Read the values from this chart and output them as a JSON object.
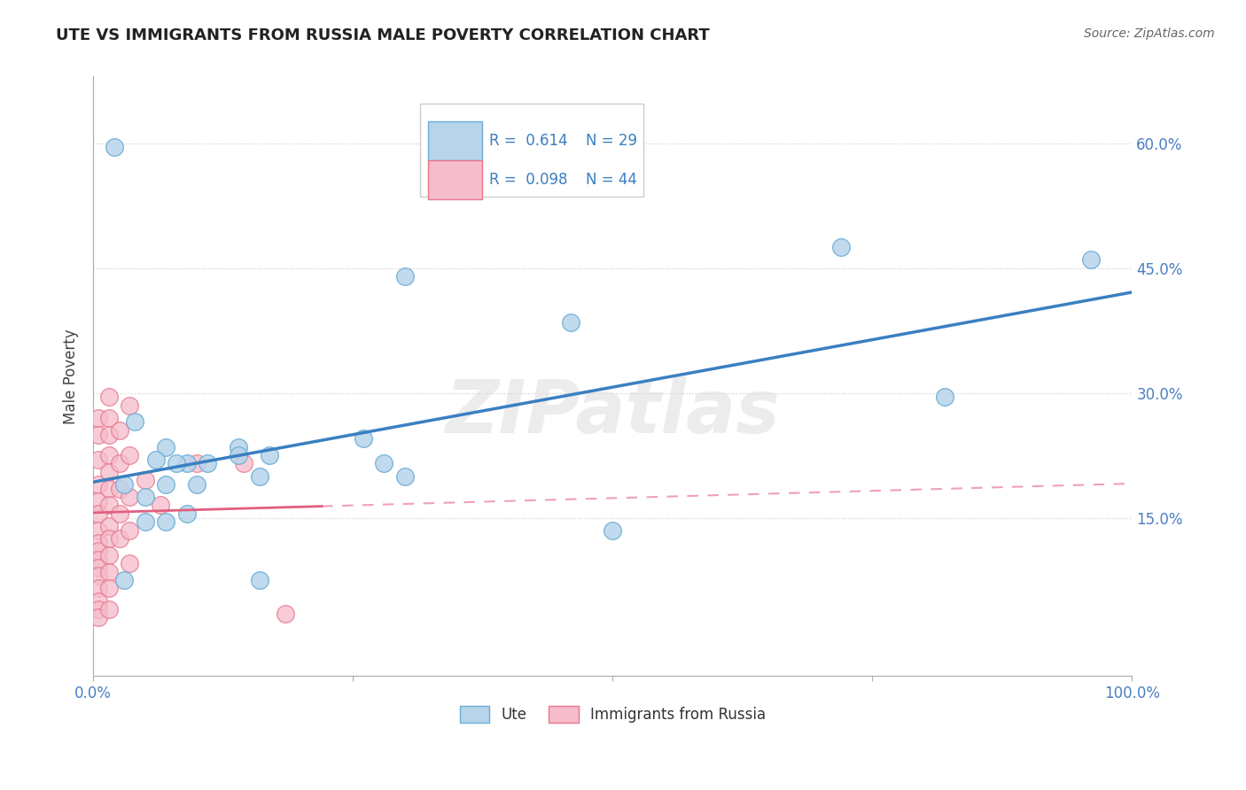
{
  "title": "UTE VS IMMIGRANTS FROM RUSSIA MALE POVERTY CORRELATION CHART",
  "source": "Source: ZipAtlas.com",
  "ylabel_label": "Male Poverty",
  "y_tick_values": [
    0.15,
    0.3,
    0.45,
    0.6
  ],
  "xlim": [
    0.0,
    1.0
  ],
  "ylim": [
    -0.04,
    0.68
  ],
  "legend_r_ute": "R =  0.614",
  "legend_n_ute": "N = 29",
  "legend_r_russia": "R =  0.098",
  "legend_n_russia": "N = 44",
  "ute_color": "#b8d4ea",
  "russia_color": "#f5bccb",
  "ute_edge_color": "#6aaed6",
  "russia_edge_color": "#e8758a",
  "ute_line_color": "#3a7fc1",
  "russia_solid_color": "#e06080",
  "russia_dash_color": "#f0a0b8",
  "watermark_text": "ZIPatlas",
  "ute_points": [
    [
      0.02,
      0.595
    ],
    [
      0.46,
      0.385
    ],
    [
      0.3,
      0.44
    ],
    [
      0.72,
      0.475
    ],
    [
      0.04,
      0.265
    ],
    [
      0.07,
      0.235
    ],
    [
      0.09,
      0.215
    ],
    [
      0.11,
      0.215
    ],
    [
      0.14,
      0.235
    ],
    [
      0.17,
      0.225
    ],
    [
      0.06,
      0.22
    ],
    [
      0.08,
      0.215
    ],
    [
      0.1,
      0.19
    ],
    [
      0.03,
      0.19
    ],
    [
      0.05,
      0.175
    ],
    [
      0.07,
      0.19
    ],
    [
      0.14,
      0.225
    ],
    [
      0.16,
      0.2
    ],
    [
      0.26,
      0.245
    ],
    [
      0.28,
      0.215
    ],
    [
      0.3,
      0.2
    ],
    [
      0.05,
      0.145
    ],
    [
      0.07,
      0.145
    ],
    [
      0.09,
      0.155
    ],
    [
      0.5,
      0.135
    ],
    [
      0.82,
      0.295
    ],
    [
      0.96,
      0.46
    ],
    [
      0.03,
      0.075
    ],
    [
      0.16,
      0.075
    ]
  ],
  "russia_points": [
    [
      0.005,
      0.27
    ],
    [
      0.005,
      0.25
    ],
    [
      0.005,
      0.22
    ],
    [
      0.005,
      0.19
    ],
    [
      0.005,
      0.17
    ],
    [
      0.005,
      0.155
    ],
    [
      0.005,
      0.135
    ],
    [
      0.005,
      0.12
    ],
    [
      0.005,
      0.11
    ],
    [
      0.005,
      0.1
    ],
    [
      0.005,
      0.09
    ],
    [
      0.005,
      0.08
    ],
    [
      0.005,
      0.065
    ],
    [
      0.005,
      0.05
    ],
    [
      0.005,
      0.04
    ],
    [
      0.005,
      0.03
    ],
    [
      0.015,
      0.295
    ],
    [
      0.015,
      0.27
    ],
    [
      0.015,
      0.25
    ],
    [
      0.015,
      0.225
    ],
    [
      0.015,
      0.205
    ],
    [
      0.015,
      0.185
    ],
    [
      0.015,
      0.165
    ],
    [
      0.015,
      0.14
    ],
    [
      0.015,
      0.125
    ],
    [
      0.015,
      0.105
    ],
    [
      0.015,
      0.085
    ],
    [
      0.015,
      0.065
    ],
    [
      0.015,
      0.04
    ],
    [
      0.025,
      0.255
    ],
    [
      0.025,
      0.215
    ],
    [
      0.025,
      0.185
    ],
    [
      0.025,
      0.155
    ],
    [
      0.025,
      0.125
    ],
    [
      0.035,
      0.285
    ],
    [
      0.035,
      0.225
    ],
    [
      0.035,
      0.175
    ],
    [
      0.035,
      0.135
    ],
    [
      0.035,
      0.095
    ],
    [
      0.05,
      0.195
    ],
    [
      0.065,
      0.165
    ],
    [
      0.1,
      0.215
    ],
    [
      0.145,
      0.215
    ],
    [
      0.185,
      0.035
    ]
  ]
}
